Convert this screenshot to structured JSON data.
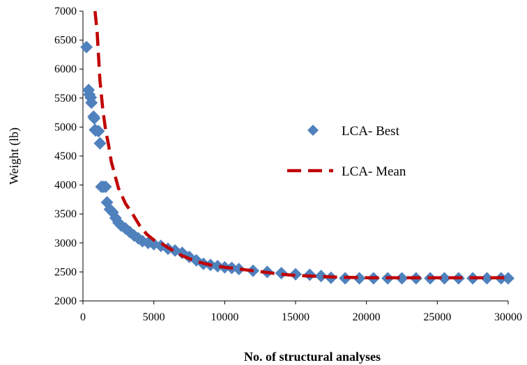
{
  "chart_data": {
    "type": "scatter",
    "xlabel": "No. of structural analyses",
    "ylabel": "Weight (lb)",
    "xlim": [
      0,
      30000
    ],
    "ylim": [
      2000,
      7000
    ],
    "x_ticks": [
      0,
      5000,
      10000,
      15000,
      20000,
      25000,
      30000
    ],
    "y_ticks": [
      2000,
      2500,
      3000,
      3500,
      4000,
      4500,
      5000,
      5500,
      6000,
      6500,
      7000
    ],
    "grid": false,
    "legend_position": "right",
    "series": [
      {
        "name": "LCA- Best",
        "kind": "scatter",
        "marker": "diamond",
        "color": "#4f81bd",
        "points": [
          [
            250,
            6380
          ],
          [
            400,
            5640
          ],
          [
            450,
            5560
          ],
          [
            550,
            5510
          ],
          [
            600,
            5420
          ],
          [
            750,
            5180
          ],
          [
            800,
            5150
          ],
          [
            850,
            4950
          ],
          [
            900,
            4940
          ],
          [
            1100,
            4930
          ],
          [
            1200,
            4720
          ],
          [
            1300,
            3970
          ],
          [
            1450,
            3970
          ],
          [
            1600,
            3970
          ],
          [
            1700,
            3700
          ],
          [
            1900,
            3580
          ],
          [
            2100,
            3530
          ],
          [
            2300,
            3430
          ],
          [
            2500,
            3350
          ],
          [
            2700,
            3300
          ],
          [
            3000,
            3250
          ],
          [
            3300,
            3190
          ],
          [
            3600,
            3130
          ],
          [
            3900,
            3080
          ],
          [
            4200,
            3030
          ],
          [
            4600,
            3000
          ],
          [
            5000,
            2980
          ],
          [
            5500,
            2950
          ],
          [
            6000,
            2900
          ],
          [
            6500,
            2870
          ],
          [
            7000,
            2830
          ],
          [
            7500,
            2760
          ],
          [
            8000,
            2700
          ],
          [
            8500,
            2640
          ],
          [
            9000,
            2620
          ],
          [
            9500,
            2600
          ],
          [
            10000,
            2580
          ],
          [
            10500,
            2570
          ],
          [
            11000,
            2550
          ],
          [
            12000,
            2520
          ],
          [
            13000,
            2500
          ],
          [
            14000,
            2480
          ],
          [
            15000,
            2460
          ],
          [
            16000,
            2450
          ],
          [
            16800,
            2430
          ],
          [
            17500,
            2400
          ],
          [
            18500,
            2390
          ],
          [
            19500,
            2390
          ],
          [
            20500,
            2390
          ],
          [
            21500,
            2390
          ],
          [
            22500,
            2390
          ],
          [
            23500,
            2390
          ],
          [
            24500,
            2390
          ],
          [
            25500,
            2390
          ],
          [
            26500,
            2390
          ],
          [
            27500,
            2390
          ],
          [
            28500,
            2390
          ],
          [
            29500,
            2390
          ],
          [
            30000,
            2390
          ]
        ]
      },
      {
        "name": "LCA- Mean",
        "kind": "line",
        "style": "dashed",
        "color": "#c00000",
        "points": [
          [
            850,
            7000
          ],
          [
            1000,
            6650
          ],
          [
            1200,
            5800
          ],
          [
            1400,
            5300
          ],
          [
            1600,
            4950
          ],
          [
            1800,
            4700
          ],
          [
            2000,
            4400
          ],
          [
            2500,
            3950
          ],
          [
            3000,
            3680
          ],
          [
            3500,
            3500
          ],
          [
            4000,
            3300
          ],
          [
            4500,
            3150
          ],
          [
            5000,
            3050
          ],
          [
            5500,
            3000
          ],
          [
            6000,
            2920
          ],
          [
            7000,
            2780
          ],
          [
            8000,
            2680
          ],
          [
            9000,
            2620
          ],
          [
            10000,
            2580
          ],
          [
            11000,
            2550
          ],
          [
            12000,
            2520
          ],
          [
            13000,
            2490
          ],
          [
            14000,
            2460
          ],
          [
            15000,
            2440
          ],
          [
            16000,
            2430
          ],
          [
            17000,
            2420
          ],
          [
            18000,
            2410
          ],
          [
            20000,
            2400
          ],
          [
            22000,
            2400
          ],
          [
            25000,
            2400
          ],
          [
            28000,
            2400
          ],
          [
            30000,
            2400
          ]
        ]
      }
    ]
  }
}
